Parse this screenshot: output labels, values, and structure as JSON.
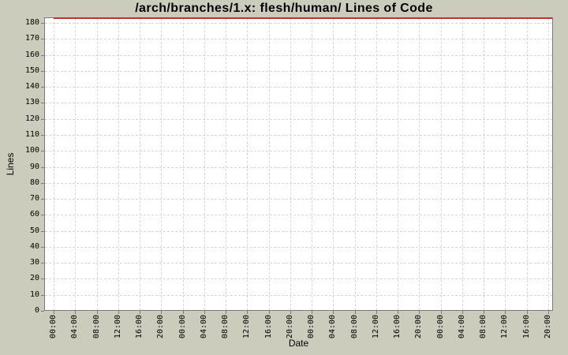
{
  "chart_data": {
    "type": "line",
    "title": "/arch/branches/1.x: flesh/human/ Lines of Code",
    "xlabel": "Date",
    "ylabel": "Lines",
    "ylim": [
      0,
      183.5
    ],
    "y_ticks": [
      0,
      10,
      20,
      30,
      40,
      50,
      60,
      70,
      80,
      90,
      100,
      110,
      120,
      130,
      140,
      150,
      160,
      170,
      180
    ],
    "x_tick_labels": [
      "00:00",
      "04:00",
      "08:00",
      "12:00",
      "16:00",
      "20:00",
      "00:00",
      "04:00",
      "08:00",
      "12:00",
      "16:00",
      "20:00",
      "00:00",
      "04:00",
      "08:00",
      "12:00",
      "16:00",
      "20:00",
      "00:00",
      "04:00",
      "08:00",
      "12:00",
      "16:00",
      "20:00"
    ],
    "grid": true,
    "legend": "none",
    "series": [
      {
        "name": "Lines of Code",
        "color": "#bb3333",
        "shape": "constant horizontal line at very top of plot spanning the full date range",
        "constant_value": 183
      }
    ]
  },
  "colors": {
    "page_background": "#ccccbd",
    "plot_background": "#ffffff",
    "plot_border": "#7a7a7a",
    "gridline": "#d8d8d8",
    "tick_mark": "#7a7a7a",
    "series_red": "#bb3333",
    "text": "#000000"
  }
}
